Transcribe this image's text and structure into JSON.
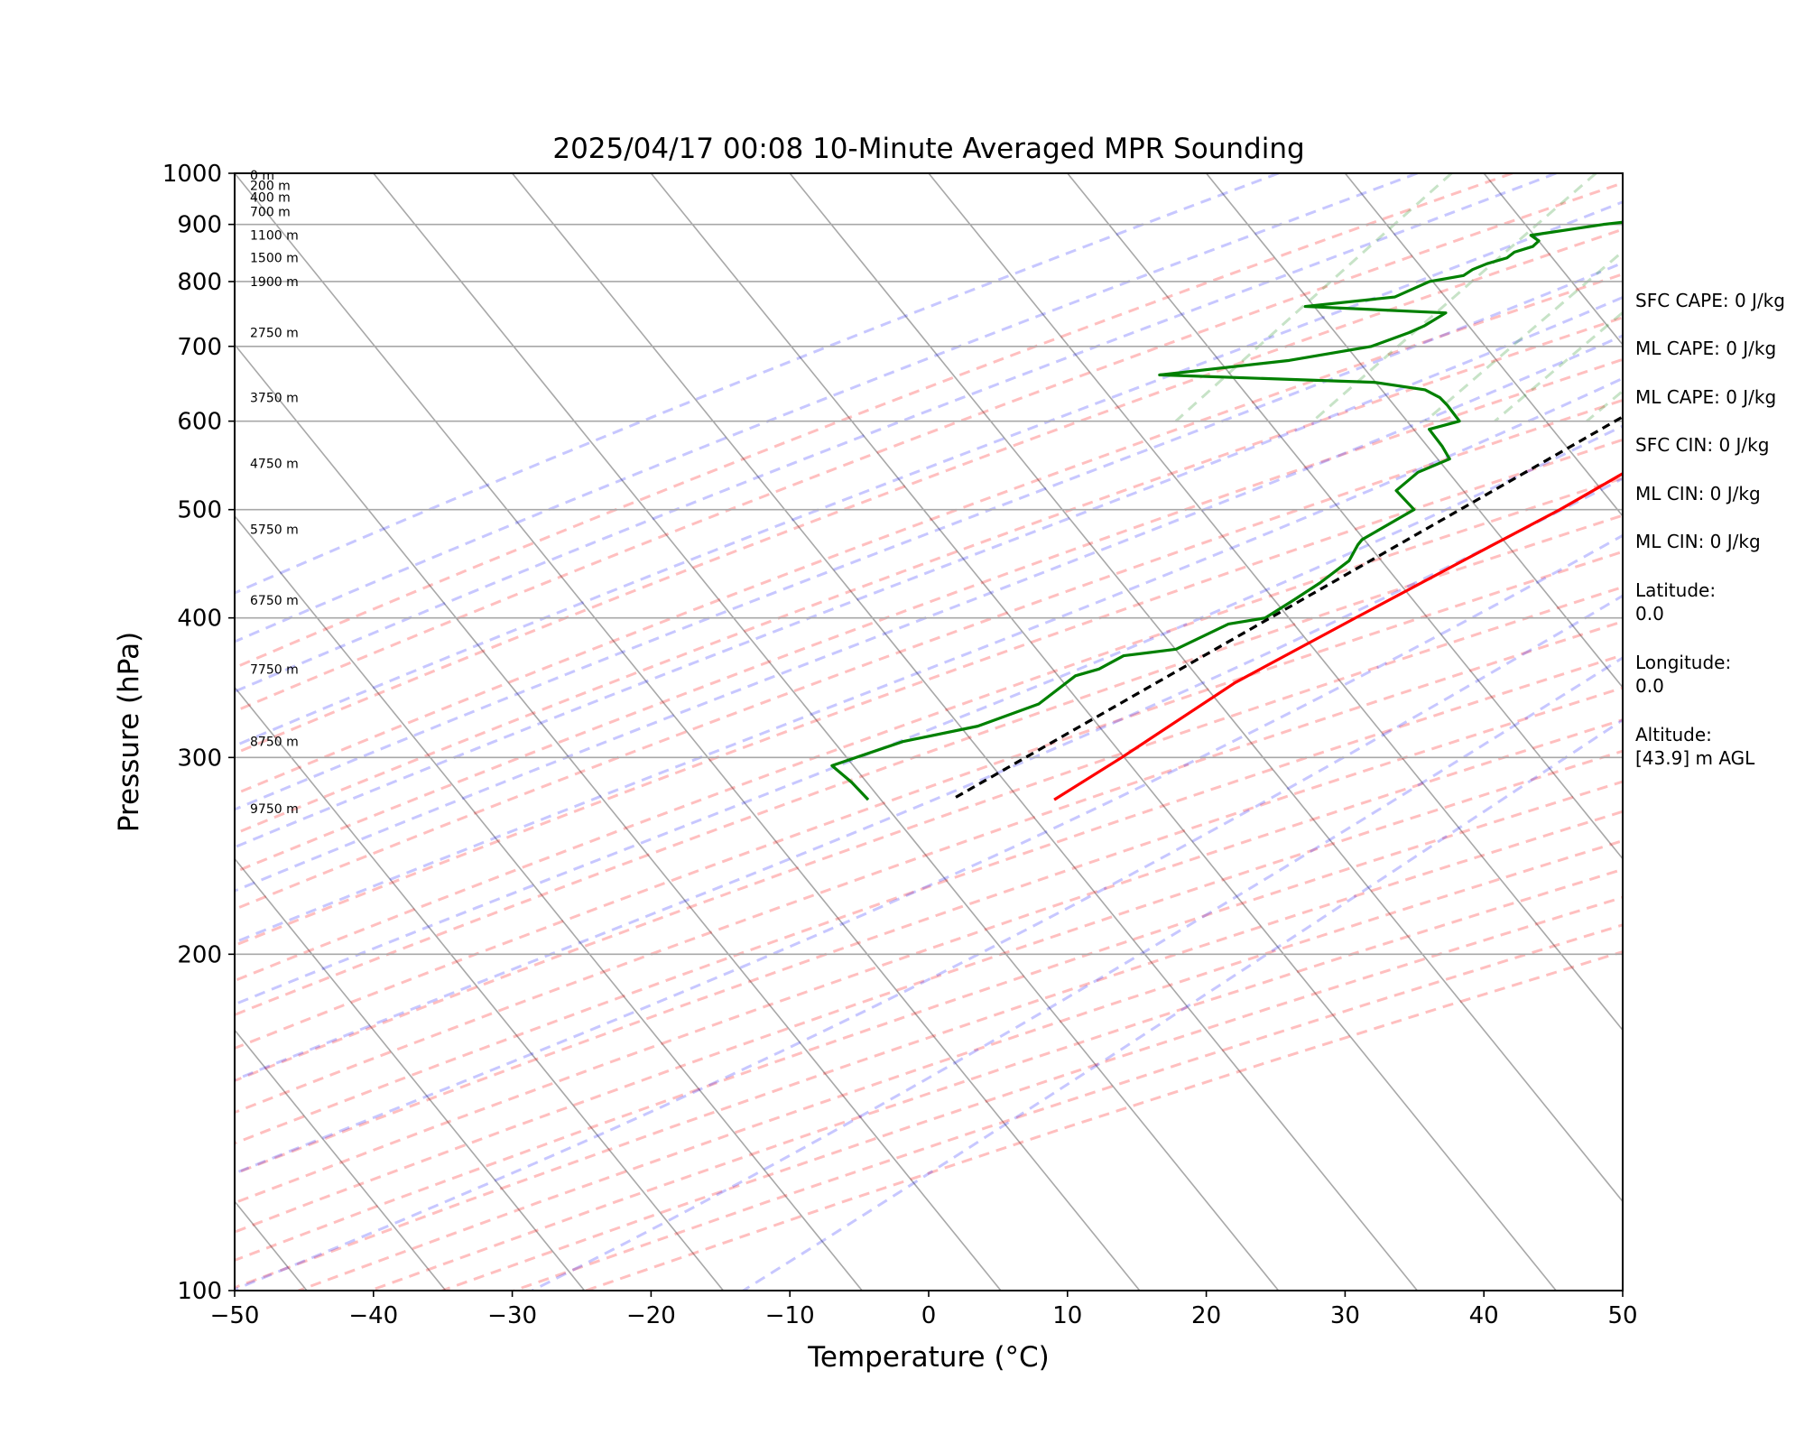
{
  "chart_data": {
    "type": "line",
    "title": "2025/04/17 00:08 10-Minute Averaged MPR Sounding",
    "xlabel": "Temperature (°C)",
    "ylabel": "Pressure (hPa)",
    "xlim": [
      -50,
      50
    ],
    "ylim": [
      1000,
      100
    ],
    "y_scale": "log",
    "grid": true,
    "x_ticks": [
      "−50",
      "−40",
      "−30",
      "−20",
      "−10",
      "0",
      "10",
      "20",
      "30",
      "40",
      "50"
    ],
    "y_ticks": [
      "100",
      "200",
      "300",
      "400",
      "500",
      "600",
      "700",
      "800",
      "900",
      "1000"
    ],
    "series": [
      {
        "key": "temperature",
        "color": "#ff0000",
        "pressure": [
          1000,
          990,
          970,
          950,
          930,
          910,
          890,
          870,
          850,
          830,
          800,
          775,
          750,
          725,
          700,
          675,
          650,
          625,
          600,
          575,
          550,
          525,
          500,
          450,
          400,
          350,
          300,
          275
        ],
        "values": [
          20.4,
          20.3,
          19.8,
          18.6,
          17.3,
          16.2,
          15.3,
          14.5,
          13.9,
          13.5,
          12.8,
          11.8,
          11.3,
          10.8,
          10.2,
          9.3,
          8.5,
          7.5,
          6.2,
          4.8,
          3.0,
          1.5,
          -0.1,
          -4.1,
          -8.5,
          -13.4,
          -17.2,
          -19.6
        ]
      },
      {
        "key": "dewpoint",
        "color": "#008000",
        "pressure": [
          1000,
          980,
          960,
          950,
          940,
          930,
          920,
          900,
          880,
          870,
          860,
          850,
          840,
          830,
          820,
          810,
          800,
          775,
          760,
          750,
          730,
          720,
          700,
          680,
          660,
          650,
          640,
          630,
          620,
          600,
          590,
          570,
          555,
          540,
          520,
          500,
          470,
          465,
          450,
          430,
          415,
          400,
          395,
          375,
          370,
          360,
          355,
          335,
          320,
          310,
          295,
          285,
          275
        ],
        "values": [
          3.0,
          -3.0,
          -2.5,
          -2.4,
          -0.5,
          -0.1,
          -7.5,
          -13.6,
          -18.2,
          -17.3,
          -17.4,
          -18.4,
          -18.6,
          -19.7,
          -20.4,
          -20.7,
          -22.8,
          -24.4,
          -30.3,
          -19.8,
          -20.6,
          -21.3,
          -23.2,
          -28.3,
          -36.8,
          -20.9,
          -16.8,
          -15.3,
          -14.3,
          -12.5,
          -14.2,
          -12.3,
          -11.0,
          -12.5,
          -13.0,
          -10.6,
          -12.6,
          -12.6,
          -12.3,
          -13.1,
          -14.0,
          -15.0,
          -17.3,
          -19.6,
          -23.0,
          -24.0,
          -25.3,
          -26.3,
          -29.4,
          -33.9,
          -37.6,
          -35.2,
          -33.0
        ]
      },
      {
        "key": "parcel",
        "color": "#000000",
        "style": "dashed",
        "pressure": [
          1000,
          850,
          275
        ],
        "values": [
          16.2,
          10.2,
          -27.0
        ]
      }
    ],
    "background_lines": {
      "dry_adiabats": "red dashed",
      "moist_adiabats": "blue dashed",
      "mixing_ratio_lines": "green dashed",
      "skewed_isotherms": "gray solid"
    },
    "height_labels": [
      {
        "pressure": 996,
        "text": "0 m"
      },
      {
        "pressure": 975,
        "text": "200 m"
      },
      {
        "pressure": 952,
        "text": "400 m"
      },
      {
        "pressure": 924,
        "text": "700 m"
      },
      {
        "pressure": 880,
        "text": "1100 m"
      },
      {
        "pressure": 840,
        "text": "1500 m"
      },
      {
        "pressure": 800,
        "text": "1900 m"
      },
      {
        "pressure": 720,
        "text": "2750 m"
      },
      {
        "pressure": 630,
        "text": "3750 m"
      },
      {
        "pressure": 550,
        "text": "4750 m"
      },
      {
        "pressure": 480,
        "text": "5750 m"
      },
      {
        "pressure": 415,
        "text": "6750 m"
      },
      {
        "pressure": 360,
        "text": "7750 m"
      },
      {
        "pressure": 310,
        "text": "8750 m"
      },
      {
        "pressure": 270,
        "text": "9750 m"
      }
    ]
  },
  "sidebar": [
    "SFC CAPE: 0 J/kg",
    "ML CAPE: 0 J/kg",
    "ML CAPE: 0 J/kg",
    "SFC CIN: 0 J/kg",
    "ML CIN: 0 J/kg",
    "ML CIN: 0 J/kg",
    "Latitude:",
    "0.0",
    "Longitude:",
    "0.0",
    "Altitude:",
    "[43.9] m AGL"
  ]
}
